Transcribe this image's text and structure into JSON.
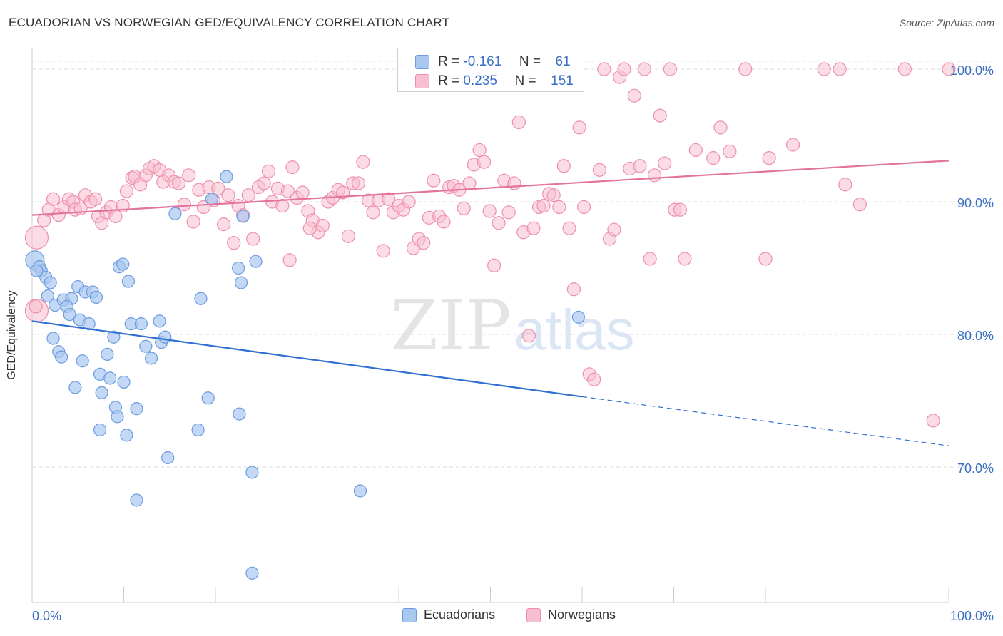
{
  "header": {
    "title": "ECUADORIAN VS NORWEGIAN GED/EQUIVALENCY CORRELATION CHART",
    "source": "Source: ZipAtlas.com"
  },
  "legend": {
    "rows": [
      {
        "r_label": "R =",
        "r_value": "-0.161",
        "n_label": "N =",
        "n_value": "61"
      },
      {
        "r_label": "R =",
        "r_value": "0.235",
        "n_label": "N =",
        "n_value": "151"
      }
    ]
  },
  "bottom_legend": {
    "items": [
      {
        "label": "Ecuadorians"
      },
      {
        "label": "Norwegians"
      }
    ]
  },
  "watermark": {
    "zip": "ZIP",
    "atlas": "atlas"
  },
  "colors": {
    "blue_fill": "#a9c8f0",
    "blue_stroke": "#6b9be0",
    "blue_line": "#2f6fd0",
    "pink_fill": "#f7bfd0",
    "pink_stroke": "#ee8fae",
    "pink_line": "#e4739a",
    "tick_text": "#3a6fc4",
    "grid": "#dddddd"
  },
  "chart_data": {
    "type": "scatter",
    "title": "ECUADORIAN VS NORWEGIAN GED/EQUIVALENCY CORRELATION CHART",
    "xlabel": "",
    "ylabel": "GED/Equivalency",
    "xlim": [
      0,
      100
    ],
    "ylim": [
      60.5,
      101.5
    ],
    "x_tick_labels": [
      "0.0%",
      "100.0%"
    ],
    "y_ticks": [
      70,
      80,
      90,
      100
    ],
    "y_tick_labels": [
      "70.0%",
      "80.0%",
      "90.0%",
      "100.0%"
    ],
    "grid": true,
    "legend_position": "top-center",
    "series": [
      {
        "name": "Ecuadorians",
        "r": -0.161,
        "n": 61,
        "trend": {
          "x0": 0,
          "y0": 81.0,
          "x1": 60,
          "y1": 75.3,
          "dashed_to_x": 100,
          "dashed_to_y": 71.6
        },
        "points": [
          [
            0.3,
            85.6
          ],
          [
            0.8,
            85.1
          ],
          [
            1.0,
            84.8
          ],
          [
            1.5,
            84.3
          ],
          [
            2.0,
            83.9
          ],
          [
            1.7,
            82.9
          ],
          [
            2.5,
            82.2
          ],
          [
            3.4,
            82.6
          ],
          [
            4.3,
            82.7
          ],
          [
            3.8,
            82.1
          ],
          [
            4.1,
            81.5
          ],
          [
            5.2,
            81.1
          ],
          [
            6.2,
            80.8
          ],
          [
            5.0,
            83.6
          ],
          [
            5.8,
            83.2
          ],
          [
            6.6,
            83.2
          ],
          [
            7.0,
            82.8
          ],
          [
            9.5,
            85.1
          ],
          [
            9.9,
            85.3
          ],
          [
            10.5,
            84.0
          ],
          [
            2.3,
            79.7
          ],
          [
            2.9,
            78.7
          ],
          [
            3.2,
            78.3
          ],
          [
            5.5,
            78.0
          ],
          [
            7.4,
            77.0
          ],
          [
            8.2,
            78.5
          ],
          [
            8.5,
            76.7
          ],
          [
            8.9,
            79.8
          ],
          [
            10.0,
            76.4
          ],
          [
            10.8,
            80.8
          ],
          [
            11.9,
            80.8
          ],
          [
            12.4,
            79.1
          ],
          [
            13.0,
            78.2
          ],
          [
            14.1,
            79.4
          ],
          [
            14.5,
            79.8
          ],
          [
            13.9,
            81.0
          ],
          [
            4.7,
            76.0
          ],
          [
            7.6,
            75.6
          ],
          [
            9.1,
            74.5
          ],
          [
            9.3,
            73.8
          ],
          [
            7.4,
            72.8
          ],
          [
            10.3,
            72.4
          ],
          [
            11.4,
            74.4
          ],
          [
            14.8,
            70.7
          ],
          [
            18.1,
            72.8
          ],
          [
            18.4,
            82.7
          ],
          [
            19.2,
            75.2
          ],
          [
            22.5,
            85.0
          ],
          [
            22.8,
            83.9
          ],
          [
            22.6,
            74.0
          ],
          [
            24.4,
            85.5
          ],
          [
            23.0,
            88.9
          ],
          [
            15.6,
            89.1
          ],
          [
            19.6,
            90.2
          ],
          [
            21.2,
            91.9
          ],
          [
            24.0,
            69.6
          ],
          [
            11.4,
            67.5
          ],
          [
            35.8,
            68.2
          ],
          [
            24.0,
            62.0
          ],
          [
            59.6,
            81.3
          ],
          [
            0.5,
            84.8
          ]
        ]
      },
      {
        "name": "Norwegians",
        "r": 0.235,
        "n": 151,
        "trend": {
          "x0": 0,
          "y0": 89.0,
          "x1": 100,
          "y1": 93.1
        },
        "points": [
          [
            0.5,
            87.3
          ],
          [
            0.5,
            81.8
          ],
          [
            1.3,
            88.6
          ],
          [
            1.8,
            89.4
          ],
          [
            2.3,
            90.2
          ],
          [
            2.9,
            89.0
          ],
          [
            3.5,
            89.6
          ],
          [
            4.0,
            90.2
          ],
          [
            4.5,
            90.0
          ],
          [
            4.7,
            89.4
          ],
          [
            5.3,
            89.5
          ],
          [
            5.8,
            90.5
          ],
          [
            6.4,
            90.0
          ],
          [
            6.9,
            90.2
          ],
          [
            7.2,
            88.9
          ],
          [
            7.6,
            88.4
          ],
          [
            8.1,
            89.2
          ],
          [
            8.6,
            89.6
          ],
          [
            9.1,
            88.9
          ],
          [
            9.9,
            89.7
          ],
          [
            10.3,
            90.8
          ],
          [
            10.9,
            91.8
          ],
          [
            11.2,
            91.9
          ],
          [
            11.8,
            91.3
          ],
          [
            12.4,
            92.0
          ],
          [
            12.8,
            92.5
          ],
          [
            13.3,
            92.7
          ],
          [
            13.9,
            92.4
          ],
          [
            14.3,
            91.5
          ],
          [
            14.9,
            92.0
          ],
          [
            15.5,
            91.5
          ],
          [
            16.0,
            91.4
          ],
          [
            16.6,
            89.8
          ],
          [
            17.1,
            92.0
          ],
          [
            17.6,
            88.5
          ],
          [
            18.2,
            90.9
          ],
          [
            18.7,
            89.6
          ],
          [
            19.3,
            91.1
          ],
          [
            19.8,
            90.1
          ],
          [
            20.3,
            91.0
          ],
          [
            20.9,
            88.3
          ],
          [
            21.4,
            90.5
          ],
          [
            22.0,
            86.9
          ],
          [
            22.5,
            89.7
          ],
          [
            23.0,
            89.0
          ],
          [
            23.6,
            90.5
          ],
          [
            24.1,
            87.2
          ],
          [
            24.7,
            91.1
          ],
          [
            25.3,
            91.4
          ],
          [
            25.8,
            92.3
          ],
          [
            26.2,
            90.0
          ],
          [
            26.8,
            91.0
          ],
          [
            27.3,
            89.7
          ],
          [
            27.9,
            90.8
          ],
          [
            28.4,
            92.6
          ],
          [
            28.9,
            90.3
          ],
          [
            29.5,
            90.7
          ],
          [
            30.1,
            89.3
          ],
          [
            30.6,
            88.6
          ],
          [
            31.2,
            87.7
          ],
          [
            31.7,
            88.2
          ],
          [
            32.3,
            90.0
          ],
          [
            32.8,
            90.3
          ],
          [
            33.4,
            90.9
          ],
          [
            33.9,
            90.7
          ],
          [
            34.5,
            87.4
          ],
          [
            35.0,
            91.4
          ],
          [
            35.6,
            91.4
          ],
          [
            36.1,
            93.0
          ],
          [
            36.7,
            90.1
          ],
          [
            37.2,
            89.2
          ],
          [
            37.8,
            90.1
          ],
          [
            38.3,
            86.3
          ],
          [
            38.9,
            90.2
          ],
          [
            39.4,
            89.2
          ],
          [
            40.0,
            89.7
          ],
          [
            40.5,
            89.4
          ],
          [
            41.1,
            90.0
          ],
          [
            41.6,
            86.5
          ],
          [
            42.2,
            87.2
          ],
          [
            42.7,
            86.9
          ],
          [
            43.3,
            88.8
          ],
          [
            43.8,
            91.6
          ],
          [
            44.4,
            88.9
          ],
          [
            44.9,
            88.5
          ],
          [
            45.5,
            91.1
          ],
          [
            46.0,
            91.2
          ],
          [
            46.6,
            90.9
          ],
          [
            47.1,
            89.5
          ],
          [
            47.7,
            91.4
          ],
          [
            48.2,
            92.8
          ],
          [
            48.8,
            93.9
          ],
          [
            49.3,
            93.0
          ],
          [
            49.9,
            89.3
          ],
          [
            50.4,
            85.2
          ],
          [
            50.9,
            88.4
          ],
          [
            51.5,
            91.6
          ],
          [
            52.0,
            89.2
          ],
          [
            52.6,
            91.4
          ],
          [
            53.1,
            96.0
          ],
          [
            53.6,
            87.7
          ],
          [
            54.2,
            79.9
          ],
          [
            54.7,
            88.0
          ],
          [
            55.3,
            89.6
          ],
          [
            55.8,
            89.7
          ],
          [
            56.4,
            90.6
          ],
          [
            56.9,
            90.5
          ],
          [
            57.5,
            89.6
          ],
          [
            58.0,
            92.7
          ],
          [
            58.6,
            88.0
          ],
          [
            59.1,
            83.4
          ],
          [
            59.7,
            95.6
          ],
          [
            60.2,
            89.6
          ],
          [
            60.8,
            77.0
          ],
          [
            61.3,
            76.6
          ],
          [
            61.9,
            92.4
          ],
          [
            62.4,
            100.0
          ],
          [
            63.0,
            87.2
          ],
          [
            63.5,
            87.9
          ],
          [
            64.1,
            99.4
          ],
          [
            64.6,
            100.0
          ],
          [
            65.2,
            92.5
          ],
          [
            65.7,
            98.0
          ],
          [
            66.3,
            92.7
          ],
          [
            66.8,
            100.0
          ],
          [
            67.4,
            85.7
          ],
          [
            67.9,
            92.0
          ],
          [
            68.5,
            96.5
          ],
          [
            69.0,
            92.9
          ],
          [
            69.6,
            100.0
          ],
          [
            70.1,
            89.4
          ],
          [
            70.7,
            89.4
          ],
          [
            71.2,
            85.7
          ],
          [
            72.4,
            93.9
          ],
          [
            74.3,
            93.3
          ],
          [
            75.1,
            95.6
          ],
          [
            76.1,
            93.8
          ],
          [
            77.8,
            100.0
          ],
          [
            80.0,
            85.7
          ],
          [
            80.4,
            93.3
          ],
          [
            83.0,
            94.3
          ],
          [
            86.4,
            100.0
          ],
          [
            88.1,
            100.0
          ],
          [
            88.7,
            91.3
          ],
          [
            90.3,
            89.8
          ],
          [
            95.2,
            100.0
          ],
          [
            98.3,
            73.5
          ],
          [
            100.0,
            100.0
          ],
          [
            30.3,
            88.0
          ],
          [
            28.1,
            85.6
          ],
          [
            0.4,
            82.1
          ]
        ]
      }
    ]
  }
}
